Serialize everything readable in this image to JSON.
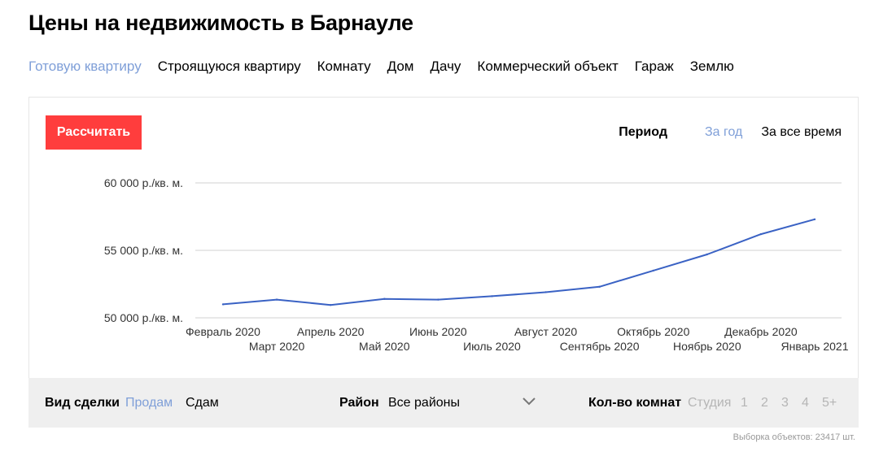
{
  "page": {
    "title": "Цены на недвижимость в Барнауле",
    "property_types": [
      {
        "label": "Готовую квартиру",
        "active": true
      },
      {
        "label": "Строящуюся квартиру",
        "active": false
      },
      {
        "label": "Комнату",
        "active": false
      },
      {
        "label": "Дом",
        "active": false
      },
      {
        "label": "Дачу",
        "active": false
      },
      {
        "label": "Коммерческий объект",
        "active": false
      },
      {
        "label": "Гараж",
        "active": false
      },
      {
        "label": "Землю",
        "active": false
      }
    ]
  },
  "controls": {
    "calculate_label": "Рассчитать",
    "period_label": "Период",
    "period_options": [
      {
        "label": "За год",
        "active": true
      },
      {
        "label": "За все время",
        "active": false
      }
    ]
  },
  "chart_data": {
    "type": "line",
    "categories": [
      "Февраль 2020",
      "Март 2020",
      "Апрель 2020",
      "Май 2020",
      "Июнь 2020",
      "Июль 2020",
      "Август 2020",
      "Сентябрь 2020",
      "Октябрь 2020",
      "Ноябрь 2020",
      "Декабрь 2020",
      "Январь 2021"
    ],
    "series": [
      {
        "values": [
          51000,
          51350,
          50950,
          51400,
          51350,
          51600,
          51900,
          52300,
          53500,
          54700,
          56200,
          57300
        ],
        "color": "#3a62c4"
      }
    ],
    "ytick_labels": [
      "50 000 р./кв. м.",
      "55 000 р./кв. м.",
      "60 000 р./кв. м."
    ],
    "yticks": [
      50000,
      55000,
      60000
    ],
    "ylim": [
      50000,
      60000
    ],
    "grid": true,
    "legend": "none"
  },
  "filters": {
    "deal_label": "Вид сделки",
    "deal_options": [
      {
        "label": "Продам",
        "active": true
      },
      {
        "label": "Сдам",
        "active": false
      }
    ],
    "district_label": "Район",
    "district_value": "Все районы",
    "rooms_label": "Кол-во комнат",
    "rooms_options": [
      "Студия",
      "1",
      "2",
      "3",
      "4",
      "5+"
    ]
  },
  "sample_count_text": "Выборка объектов: 23417 шт."
}
